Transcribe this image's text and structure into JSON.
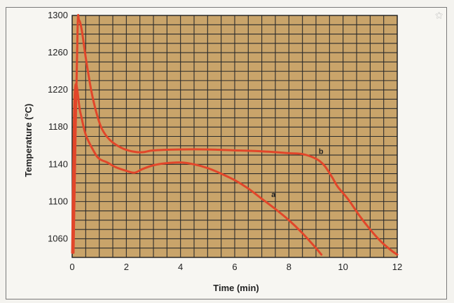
{
  "chart_data": {
    "type": "line",
    "title": "",
    "xlabel": "Time (min)",
    "ylabel": "Temperature (°C)",
    "xlim": [
      0,
      12
    ],
    "ylim": [
      1040,
      1300
    ],
    "xticks": [
      0,
      2,
      4,
      6,
      8,
      10,
      12
    ],
    "yticks": [
      1060,
      1100,
      1140,
      1180,
      1220,
      1260,
      1300
    ],
    "grid": true,
    "plot_background": "#c9a46a",
    "grid_color": "#2b2b2b",
    "line_color": "#e2462a",
    "series": [
      {
        "name": "a",
        "x": [
          0.0,
          0.1,
          0.3,
          0.5,
          0.8,
          1.0,
          1.3,
          1.6,
          2.0,
          2.3,
          2.6,
          3.0,
          3.4,
          4.0,
          4.5,
          5.0,
          5.5,
          6.0,
          6.5,
          7.0,
          7.5,
          8.0,
          8.5,
          9.0,
          9.2
        ],
        "y": [
          1045,
          1218,
          1196,
          1172,
          1154,
          1146,
          1142,
          1137,
          1133,
          1131,
          1135,
          1139,
          1141,
          1142,
          1140,
          1136,
          1130,
          1123,
          1114,
          1103,
          1092,
          1080,
          1066,
          1050,
          1043
        ]
      },
      {
        "name": "b",
        "x": [
          0.05,
          0.1,
          0.2,
          0.25,
          0.35,
          0.5,
          0.7,
          0.9,
          1.1,
          1.4,
          1.8,
          2.2,
          2.6,
          3.0,
          4.0,
          5.0,
          6.0,
          7.0,
          8.0,
          8.5,
          9.0,
          9.3,
          9.6,
          9.8,
          10.2,
          10.6,
          11.0,
          11.4,
          11.8,
          12.0
        ],
        "y": [
          1045,
          1130,
          1285,
          1295,
          1285,
          1255,
          1220,
          1195,
          1178,
          1166,
          1158,
          1154,
          1153,
          1155,
          1156,
          1156,
          1155,
          1154,
          1152,
          1151,
          1146,
          1139,
          1126,
          1116,
          1102,
          1085,
          1070,
          1057,
          1047,
          1043
        ]
      }
    ]
  }
}
